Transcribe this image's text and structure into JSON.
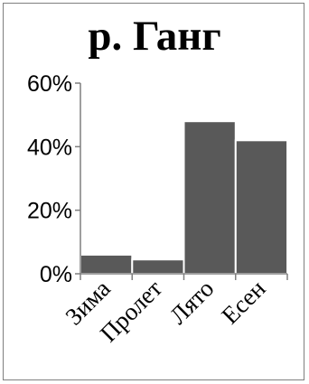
{
  "chart_data": {
    "type": "bar",
    "title": "р. Ганг",
    "categories": [
      "Зима",
      "Пролет",
      "Лято",
      "Есен"
    ],
    "values": [
      6,
      4.5,
      48,
      42
    ],
    "y_tick_labels": [
      "0%",
      "20%",
      "40%",
      "60%"
    ],
    "y_ticks": [
      0,
      20,
      40,
      60
    ],
    "ylim": [
      0,
      60
    ],
    "xlabel": "",
    "ylabel": "",
    "grid": false,
    "legend": "none",
    "bar_color": "#595959",
    "bar_edge_color": "#ffffff",
    "axis_color": "#7f7f7f"
  }
}
